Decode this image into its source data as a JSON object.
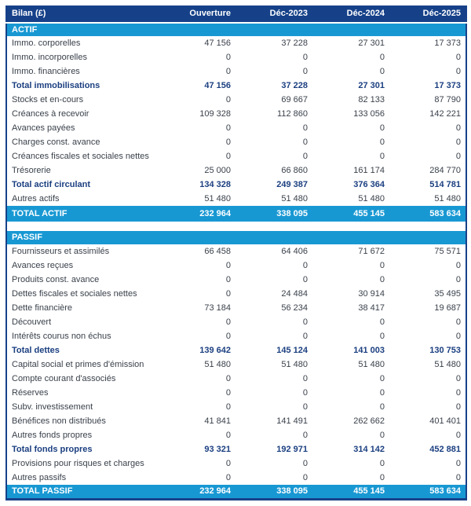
{
  "header": {
    "label": "Bilan (£)",
    "columns": [
      "Ouverture",
      "Déc-2023",
      "Déc-2024",
      "Déc-2025"
    ]
  },
  "sections": [
    {
      "title": "ACTIF",
      "rows": [
        {
          "label": "Immo. corporelles",
          "values": [
            "47 156",
            "37 228",
            "27 301",
            "17 373"
          ],
          "bold": false
        },
        {
          "label": "Immo. incorporelles",
          "values": [
            "0",
            "0",
            "0",
            "0"
          ],
          "bold": false
        },
        {
          "label": "Immo. financières",
          "values": [
            "0",
            "0",
            "0",
            "0"
          ],
          "bold": false
        },
        {
          "label": "Total immobilisations",
          "values": [
            "47 156",
            "37 228",
            "27 301",
            "17 373"
          ],
          "bold": true
        },
        {
          "label": "Stocks et en-cours",
          "values": [
            "0",
            "69 667",
            "82 133",
            "87 790"
          ],
          "bold": false
        },
        {
          "label": "Créances à recevoir",
          "values": [
            "109 328",
            "112 860",
            "133 056",
            "142 221"
          ],
          "bold": false
        },
        {
          "label": "Avances payées",
          "values": [
            "0",
            "0",
            "0",
            "0"
          ],
          "bold": false
        },
        {
          "label": "Charges const. avance",
          "values": [
            "0",
            "0",
            "0",
            "0"
          ],
          "bold": false
        },
        {
          "label": "Créances fiscales et sociales nettes",
          "values": [
            "0",
            "0",
            "0",
            "0"
          ],
          "bold": false
        },
        {
          "label": "Trésorerie",
          "values": [
            "25 000",
            "66 860",
            "161 174",
            "284 770"
          ],
          "bold": false
        },
        {
          "label": "Total actif circulant",
          "values": [
            "134 328",
            "249 387",
            "376 364",
            "514 781"
          ],
          "bold": true
        },
        {
          "label": "Autres actifs",
          "values": [
            "51 480",
            "51 480",
            "51 480",
            "51 480"
          ],
          "bold": false
        }
      ],
      "total": {
        "label": "TOTAL ACTIF",
        "values": [
          "232 964",
          "338 095",
          "455 145",
          "583 634"
        ]
      }
    },
    {
      "title": "PASSIF",
      "rows": [
        {
          "label": "Fournisseurs et assimilés",
          "values": [
            "66 458",
            "64 406",
            "71 672",
            "75 571"
          ],
          "bold": false
        },
        {
          "label": "Avances reçues",
          "values": [
            "0",
            "0",
            "0",
            "0"
          ],
          "bold": false
        },
        {
          "label": "Produits const. avance",
          "values": [
            "0",
            "0",
            "0",
            "0"
          ],
          "bold": false
        },
        {
          "label": "Dettes fiscales et sociales nettes",
          "values": [
            "0",
            "24 484",
            "30 914",
            "35 495"
          ],
          "bold": false
        },
        {
          "label": "Dette financière",
          "values": [
            "73 184",
            "56 234",
            "38 417",
            "19 687"
          ],
          "bold": false
        },
        {
          "label": "Découvert",
          "values": [
            "0",
            "0",
            "0",
            "0"
          ],
          "bold": false
        },
        {
          "label": "Intérêts courus non échus",
          "values": [
            "0",
            "0",
            "0",
            "0"
          ],
          "bold": false
        },
        {
          "label": "Total dettes",
          "values": [
            "139 642",
            "145 124",
            "141 003",
            "130 753"
          ],
          "bold": true
        },
        {
          "label": "Capital social et primes d'émission",
          "values": [
            "51 480",
            "51 480",
            "51 480",
            "51 480"
          ],
          "bold": false
        },
        {
          "label": "Compte courant d'associés",
          "values": [
            "0",
            "0",
            "0",
            "0"
          ],
          "bold": false
        },
        {
          "label": "Réserves",
          "values": [
            "0",
            "0",
            "0",
            "0"
          ],
          "bold": false
        },
        {
          "label": "Subv. investissement",
          "values": [
            "0",
            "0",
            "0",
            "0"
          ],
          "bold": false
        },
        {
          "label": "Bénéfices non distribués",
          "values": [
            "41 841",
            "141 491",
            "262 662",
            "401 401"
          ],
          "bold": false
        },
        {
          "label": "Autres fonds propres",
          "values": [
            "0",
            "0",
            "0",
            "0"
          ],
          "bold": false
        },
        {
          "label": "Total fonds propres",
          "values": [
            "93 321",
            "192 971",
            "314 142",
            "452 881"
          ],
          "bold": true
        },
        {
          "label": "Provisions pour risques et charges",
          "values": [
            "0",
            "0",
            "0",
            "0"
          ],
          "bold": false
        },
        {
          "label": "Autres passifs",
          "values": [
            "0",
            "0",
            "0",
            "0"
          ],
          "bold": false
        }
      ],
      "total": {
        "label": "TOTAL PASSIF",
        "values": [
          "232 964",
          "338 095",
          "455 145",
          "583 634"
        ]
      }
    }
  ],
  "colors": {
    "header_background": "#164189",
    "band_background": "#1898d3",
    "total_text": "#1b3f80",
    "body_text": "#3a414b",
    "row_background": "#ffffff",
    "table_border": "#164189",
    "page_background": "#ffffff"
  }
}
